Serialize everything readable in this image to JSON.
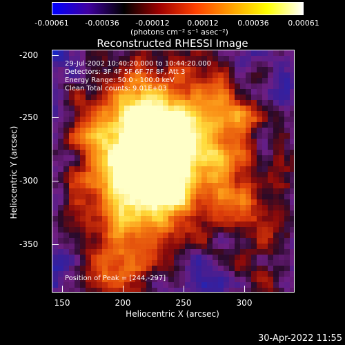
{
  "colorbar": {
    "ticks": [
      "-0.00061",
      "-0.00036",
      "-0.00012",
      "0.00012",
      "0.00036",
      "0.00061"
    ],
    "units": "(photons cm⁻² s⁻¹ asec⁻²)",
    "colors": [
      "#0000ff",
      "#4000a0",
      "#000000",
      "#a00000",
      "#ff4000",
      "#ffa000",
      "#ffff00",
      "#ffffff"
    ]
  },
  "title": "Reconstructed RHESSI Image",
  "info": {
    "line1": "29-Jul-2002 10:40:20.000 to 10:44:20.000",
    "line2": "Detectors: 3F 4F 5F 6F 7F 8F, Att 3",
    "line3": "Energy Range: 50.0 - 100.0 keV",
    "line4": "Clean     Total counts: 9.01E+03",
    "peak": "Position of Peak = [244,-297]"
  },
  "axes": {
    "xlabel": "Heliocentric X (arcsec)",
    "ylabel": "Heliocentric Y (arcsec)",
    "xticks": [
      "150",
      "200",
      "250",
      "300"
    ],
    "yticks": [
      "-200",
      "-250",
      "-300",
      "-350"
    ]
  },
  "footer": "30-Apr-2022 11:55",
  "palette": {
    "background": "#000000",
    "low": "#3a1a8c",
    "mid": "#7a1e7a",
    "hot": "#e04010",
    "peak": "#ffe060"
  }
}
